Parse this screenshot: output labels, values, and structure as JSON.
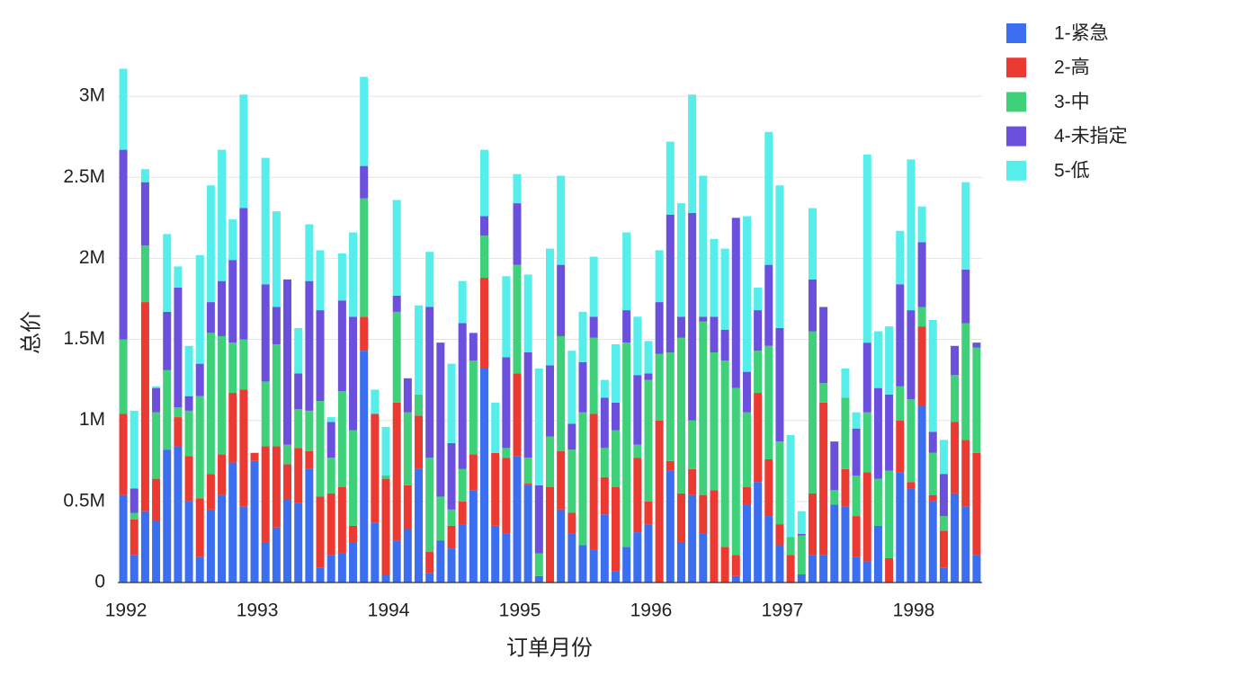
{
  "chart_data": {
    "type": "stacked_bar",
    "x_label": "订单月份",
    "y_label": "总价",
    "categories": [
      "1992",
      null,
      null,
      null,
      null,
      null,
      null,
      null,
      null,
      null,
      null,
      null,
      "1993",
      null,
      null,
      null,
      null,
      null,
      null,
      null,
      null,
      null,
      null,
      null,
      "1994",
      null,
      null,
      null,
      null,
      null,
      null,
      null,
      null,
      null,
      null,
      null,
      "1995",
      null,
      null,
      null,
      null,
      null,
      null,
      null,
      null,
      null,
      null,
      null,
      "1996",
      null,
      null,
      null,
      null,
      null,
      null,
      null,
      null,
      null,
      null,
      null,
      "1997",
      null,
      null,
      null,
      null,
      null,
      null,
      null,
      null,
      null,
      null,
      null,
      "1998",
      null,
      null,
      null,
      null,
      null,
      null
    ],
    "series": [
      {
        "name": "1-紧急",
        "color": "#3b6ff0",
        "values": [
          540000,
          170000,
          440000,
          380000,
          820000,
          840000,
          500000,
          160000,
          450000,
          540000,
          740000,
          470000,
          750000,
          250000,
          340000,
          510000,
          490000,
          700000,
          90000,
          170000,
          180000,
          250000,
          1430000,
          370000,
          50000,
          260000,
          330000,
          700000,
          60000,
          260000,
          210000,
          360000,
          570000,
          1320000,
          350000,
          300000,
          780000,
          600000,
          40000,
          0,
          450000,
          300000,
          230000,
          200000,
          420000,
          70000,
          220000,
          310000,
          360000,
          0,
          690000,
          250000,
          540000,
          300000,
          0,
          0,
          40000,
          480000,
          620000,
          410000,
          230000,
          0,
          50000,
          170000,
          170000,
          480000,
          470000,
          160000,
          130000,
          350000,
          0,
          680000,
          580000,
          1090000,
          500000,
          90000,
          550000,
          470000,
          170000
        ]
      },
      {
        "name": "2-高",
        "color": "#eb3a32",
        "values": [
          500000,
          220000,
          1290000,
          260000,
          0,
          180000,
          280000,
          360000,
          220000,
          250000,
          430000,
          720000,
          50000,
          590000,
          500000,
          220000,
          340000,
          110000,
          440000,
          380000,
          410000,
          100000,
          210000,
          670000,
          590000,
          850000,
          270000,
          330000,
          130000,
          0,
          140000,
          140000,
          220000,
          560000,
          450000,
          470000,
          510000,
          10000,
          0,
          590000,
          360000,
          130000,
          0,
          840000,
          230000,
          520000,
          0,
          460000,
          140000,
          1000000,
          60000,
          300000,
          160000,
          240000,
          570000,
          220000,
          130000,
          110000,
          550000,
          350000,
          130000,
          170000,
          0,
          380000,
          940000,
          0,
          230000,
          250000,
          550000,
          0,
          150000,
          320000,
          40000,
          490000,
          40000,
          230000,
          440000,
          410000,
          630000
        ]
      },
      {
        "name": "3-中",
        "color": "#3fd07a",
        "values": [
          460000,
          40000,
          350000,
          410000,
          490000,
          60000,
          280000,
          630000,
          870000,
          730000,
          310000,
          310000,
          0,
          400000,
          630000,
          120000,
          240000,
          250000,
          590000,
          220000,
          590000,
          590000,
          730000,
          0,
          20000,
          560000,
          450000,
          130000,
          580000,
          270000,
          100000,
          200000,
          580000,
          260000,
          0,
          60000,
          670000,
          160000,
          140000,
          310000,
          710000,
          390000,
          820000,
          470000,
          180000,
          350000,
          1260000,
          80000,
          750000,
          410000,
          670000,
          960000,
          300000,
          1070000,
          850000,
          1150000,
          1030000,
          460000,
          260000,
          700000,
          510000,
          110000,
          240000,
          1000000,
          120000,
          90000,
          440000,
          250000,
          370000,
          290000,
          540000,
          210000,
          510000,
          120000,
          260000,
          90000,
          290000,
          720000,
          650000
        ]
      },
      {
        "name": "4-未指定",
        "color": "#6a50dc",
        "values": [
          1170000,
          150000,
          390000,
          150000,
          360000,
          740000,
          90000,
          200000,
          190000,
          340000,
          510000,
          810000,
          0,
          600000,
          230000,
          1020000,
          220000,
          800000,
          560000,
          220000,
          560000,
          700000,
          200000,
          0,
          0,
          100000,
          210000,
          0,
          930000,
          950000,
          410000,
          900000,
          170000,
          120000,
          0,
          560000,
          380000,
          650000,
          420000,
          440000,
          440000,
          160000,
          310000,
          130000,
          310000,
          170000,
          200000,
          430000,
          40000,
          320000,
          850000,
          130000,
          1280000,
          30000,
          220000,
          190000,
          1050000,
          250000,
          250000,
          500000,
          700000,
          0,
          10000,
          320000,
          470000,
          300000,
          0,
          290000,
          430000,
          560000,
          470000,
          630000,
          550000,
          400000,
          130000,
          260000,
          180000,
          330000,
          30000
        ]
      },
      {
        "name": "5-低",
        "color": "#55eeea",
        "values": [
          500000,
          480000,
          80000,
          10000,
          480000,
          130000,
          310000,
          670000,
          720000,
          810000,
          250000,
          700000,
          0,
          780000,
          590000,
          0,
          280000,
          350000,
          370000,
          30000,
          290000,
          520000,
          550000,
          150000,
          300000,
          590000,
          0,
          550000,
          340000,
          0,
          490000,
          260000,
          0,
          410000,
          310000,
          500000,
          180000,
          480000,
          720000,
          720000,
          550000,
          450000,
          310000,
          370000,
          110000,
          360000,
          480000,
          360000,
          200000,
          320000,
          450000,
          700000,
          730000,
          870000,
          480000,
          500000,
          0,
          960000,
          140000,
          820000,
          880000,
          630000,
          140000,
          440000,
          0,
          0,
          180000,
          100000,
          1160000,
          350000,
          420000,
          330000,
          930000,
          220000,
          690000,
          210000,
          0,
          540000,
          0
        ]
      }
    ],
    "ylim": [
      0,
      3200000
    ],
    "yticks": [
      0,
      {
        "value": 500000,
        "label": "0.5M"
      },
      {
        "value": 1000000,
        "label": "1M"
      },
      {
        "value": 1500000,
        "label": "1.5M"
      },
      {
        "value": 2000000,
        "label": "2M"
      },
      {
        "value": 2500000,
        "label": "2.5M"
      },
      {
        "value": 3000000,
        "label": "3M"
      }
    ],
    "grid": true,
    "legend": "top-right"
  }
}
